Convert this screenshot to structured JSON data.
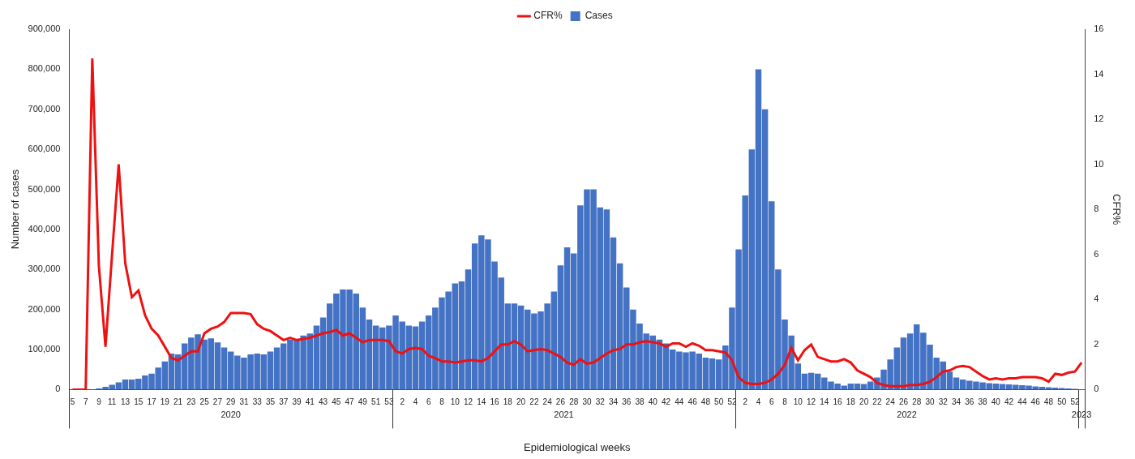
{
  "chart_data": {
    "type": "bar",
    "x_label": "Epidemiological weeks",
    "y_label": "Number of cases",
    "y2_label": "CFR%",
    "x_groups": [
      {
        "label": "2020",
        "categories": [
          "5",
          null,
          "7",
          null,
          "9",
          null,
          "11",
          null,
          "13",
          null,
          "15",
          null,
          "17",
          null,
          "19",
          null,
          "21",
          null,
          "23",
          null,
          "25",
          null,
          "27",
          null,
          "29",
          null,
          "31",
          null,
          "33",
          null,
          "35",
          null,
          "37",
          null,
          "39",
          null,
          "41",
          null,
          "43",
          null,
          "45",
          null,
          "47",
          null,
          "49",
          null,
          "51",
          null,
          "53"
        ]
      },
      {
        "label": "2021",
        "categories": [
          null,
          "2",
          null,
          "4",
          null,
          "6",
          null,
          "8",
          null,
          "10",
          null,
          "12",
          null,
          "14",
          null,
          "16",
          null,
          "18",
          null,
          "20",
          null,
          "22",
          null,
          "24",
          null,
          "26",
          null,
          "28",
          null,
          "30",
          null,
          "32",
          null,
          "34",
          null,
          "36",
          null,
          "38",
          null,
          "40",
          null,
          "42",
          null,
          "44",
          null,
          "46",
          null,
          "48",
          null,
          "50",
          null,
          "52"
        ]
      },
      {
        "label": "2022",
        "categories": [
          null,
          "2",
          null,
          "4",
          null,
          "6",
          null,
          "8",
          null,
          "10",
          null,
          "12",
          null,
          "14",
          null,
          "16",
          null,
          "18",
          null,
          "20",
          null,
          "22",
          null,
          "24",
          null,
          "26",
          null,
          "28",
          null,
          "30",
          null,
          "32",
          null,
          "34",
          null,
          "36",
          null,
          "38",
          null,
          "40",
          null,
          "42",
          null,
          "44",
          null,
          "46",
          null,
          "48",
          null,
          "50",
          null,
          "52"
        ]
      },
      {
        "label": "2023",
        "categories": [
          null
        ]
      }
    ],
    "series": [
      {
        "name": "Cases",
        "type": "bar",
        "color": "#4472c4",
        "values": [
          0,
          0,
          0,
          1000,
          3000,
          7000,
          12000,
          18000,
          25000,
          25000,
          27000,
          35000,
          40000,
          55000,
          70000,
          90000,
          88000,
          115000,
          130000,
          138000,
          125000,
          128000,
          118000,
          105000,
          95000,
          85000,
          80000,
          88000,
          90000,
          88000,
          95000,
          105000,
          115000,
          125000,
          125000,
          135000,
          140000,
          160000,
          180000,
          215000,
          240000,
          250000,
          250000,
          240000,
          205000,
          175000,
          160000,
          155000,
          160000,
          185000,
          170000,
          160000,
          158000,
          170000,
          185000,
          205000,
          230000,
          245000,
          265000,
          270000,
          300000,
          365000,
          385000,
          375000,
          320000,
          280000,
          215000,
          215000,
          210000,
          200000,
          190000,
          195000,
          215000,
          245000,
          310000,
          355000,
          340000,
          460000,
          500000,
          500000,
          455000,
          450000,
          380000,
          315000,
          255000,
          200000,
          165000,
          140000,
          135000,
          125000,
          115000,
          100000,
          95000,
          93000,
          95000,
          90000,
          80000,
          78000,
          75000,
          110000,
          205000,
          350000,
          485000,
          600000,
          800000,
          700000,
          470000,
          300000,
          175000,
          135000,
          65000,
          40000,
          42000,
          40000,
          30000,
          20000,
          15000,
          10000,
          15000,
          15000,
          14000,
          20000,
          30000,
          50000,
          75000,
          105000,
          130000,
          140000,
          163000,
          142000,
          112000,
          80000,
          70000,
          45000,
          30000,
          25000,
          22000,
          20000,
          18000,
          16000,
          15000,
          14000,
          13000,
          12000,
          11000,
          10000,
          8000,
          7000,
          6000,
          5000,
          4000,
          3000,
          2000,
          1000
        ]
      },
      {
        "name": "CFR%",
        "type": "line",
        "color": "#ee1111",
        "axis": "y2",
        "values": [
          0,
          0,
          0,
          14.7,
          5.5,
          1.9,
          6,
          10,
          5.6,
          4.1,
          4.4,
          3.3,
          2.7,
          2.4,
          1.9,
          1.4,
          1.3,
          1.5,
          1.7,
          1.7,
          2.5,
          2.7,
          2.8,
          3,
          3.4,
          3.4,
          3.4,
          3.35,
          2.9,
          2.7,
          2.6,
          2.4,
          2.2,
          2.3,
          2.2,
          2.25,
          2.3,
          2.4,
          2.5,
          2.55,
          2.65,
          2.4,
          2.5,
          2.3,
          2.1,
          2.2,
          2.2,
          2.2,
          2.15,
          1.7,
          1.6,
          1.8,
          1.85,
          1.8,
          1.5,
          1.4,
          1.25,
          1.25,
          1.2,
          1.25,
          1.3,
          1.3,
          1.25,
          1.4,
          1.7,
          2,
          2,
          2.15,
          2,
          1.7,
          1.75,
          1.8,
          1.75,
          1.6,
          1.45,
          1.2,
          1.1,
          1.35,
          1.15,
          1.2,
          1.4,
          1.6,
          1.75,
          1.8,
          2,
          2,
          2.1,
          2.15,
          2.1,
          2.05,
          1.9,
          2.05,
          2.05,
          1.9,
          2.05,
          1.95,
          1.75,
          1.75,
          1.7,
          1.65,
          1.3,
          0.55,
          0.3,
          0.25,
          0.25,
          0.3,
          0.45,
          0.7,
          1.1,
          1.85,
          1.3,
          1.75,
          2,
          1.45,
          1.35,
          1.25,
          1.25,
          1.35,
          1.2,
          0.85,
          0.7,
          0.55,
          0.3,
          0.2,
          0.15,
          0.15,
          0.15,
          0.2,
          0.2,
          0.25,
          0.35,
          0.55,
          0.8,
          0.85,
          1,
          1.05,
          1,
          0.8,
          0.6,
          0.45,
          0.5,
          0.45,
          0.5,
          0.5,
          0.55,
          0.55,
          0.55,
          0.5,
          0.35,
          0.7,
          0.65,
          0.75,
          0.8,
          1.2
        ]
      }
    ],
    "ylim": [
      0,
      900000
    ],
    "yticks": [
      0,
      {
        "value": 100000,
        "label": "100,000"
      },
      {
        "value": 200000,
        "label": "200,000"
      },
      {
        "value": 300000,
        "label": "300,000"
      },
      {
        "value": 400000,
        "label": "400,000"
      },
      {
        "value": 500000,
        "label": "500,000"
      },
      {
        "value": 600000,
        "label": "600,000"
      },
      {
        "value": 700000,
        "label": "700,000"
      },
      {
        "value": 800000,
        "label": "800,000"
      },
      {
        "value": 900000,
        "label": "900,000"
      }
    ],
    "y2lim": [
      0,
      16
    ],
    "y2ticks": [
      0,
      2,
      4,
      6,
      8,
      10,
      12,
      14,
      16
    ],
    "grid": false,
    "legend": "top"
  }
}
